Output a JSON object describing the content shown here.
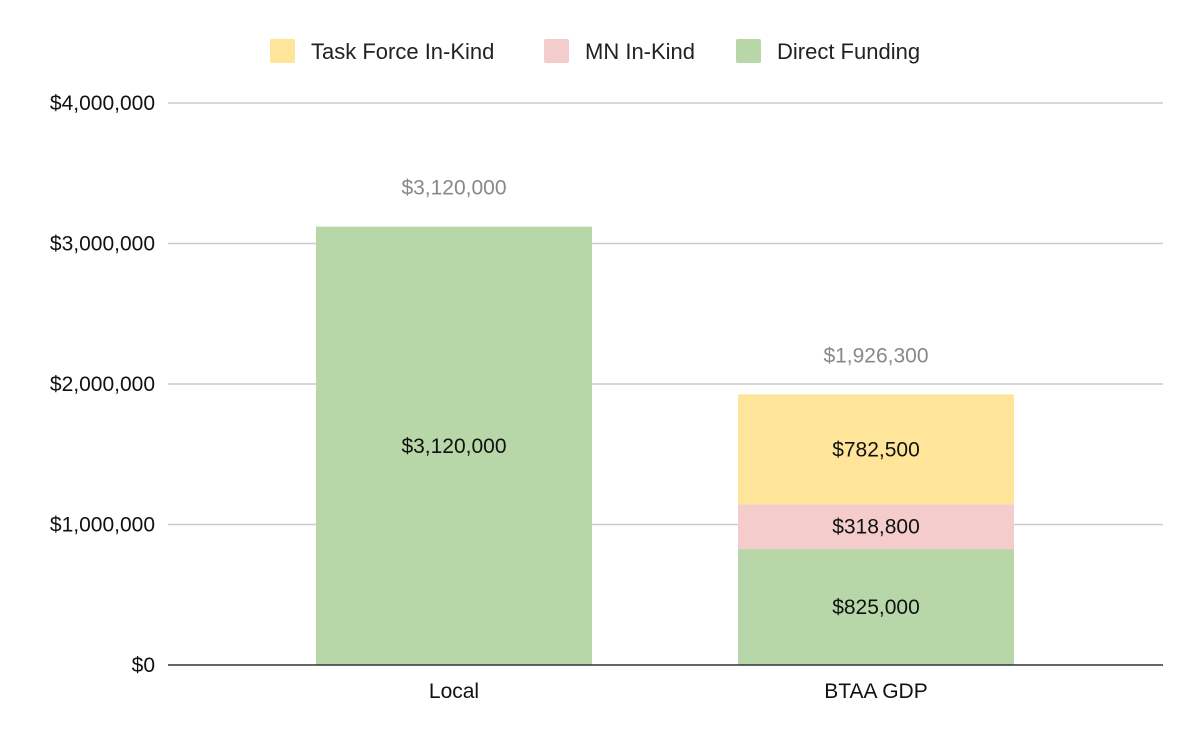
{
  "chart_data": {
    "type": "bar",
    "stacked": true,
    "categories": [
      "Local",
      "BTAA GDP"
    ],
    "series": [
      {
        "name": "Direct Funding",
        "color": "#b7d7a8",
        "values": [
          3120000,
          825000
        ],
        "labels": [
          "$3,120,000",
          "$825,000"
        ]
      },
      {
        "name": "MN In-Kind",
        "color": "#f4cccc",
        "values": [
          0,
          318800
        ],
        "labels": [
          "",
          "$318,800"
        ]
      },
      {
        "name": "Task Force In-Kind",
        "color": "#ffe599",
        "values": [
          0,
          782500
        ],
        "labels": [
          "",
          "$782,500"
        ]
      }
    ],
    "totals": [
      "$3,120,000",
      "$1,926,300"
    ],
    "legend_order": [
      "Task Force In-Kind",
      "MN In-Kind",
      "Direct Funding"
    ],
    "legend_position": "top",
    "y_ticks": [
      0,
      1000000,
      2000000,
      3000000,
      4000000
    ],
    "y_tick_labels": [
      "$0",
      "$1,000,000",
      "$2,000,000",
      "$3,000,000",
      "$4,000,000"
    ],
    "ylim": [
      0,
      4000000
    ],
    "grid": true,
    "title": "",
    "xlabel": "",
    "ylabel": ""
  }
}
